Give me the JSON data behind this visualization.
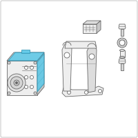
{
  "bg_color": "#ffffff",
  "border_color": "#d0d0d0",
  "line_color": "#666666",
  "blue_color": "#5bc8e8",
  "blue_dark": "#3a9ab8",
  "gray_fill": "#eeeeee",
  "gray_mid": "#dddddd",
  "gray_dark": "#c8c8c8",
  "white": "#ffffff"
}
